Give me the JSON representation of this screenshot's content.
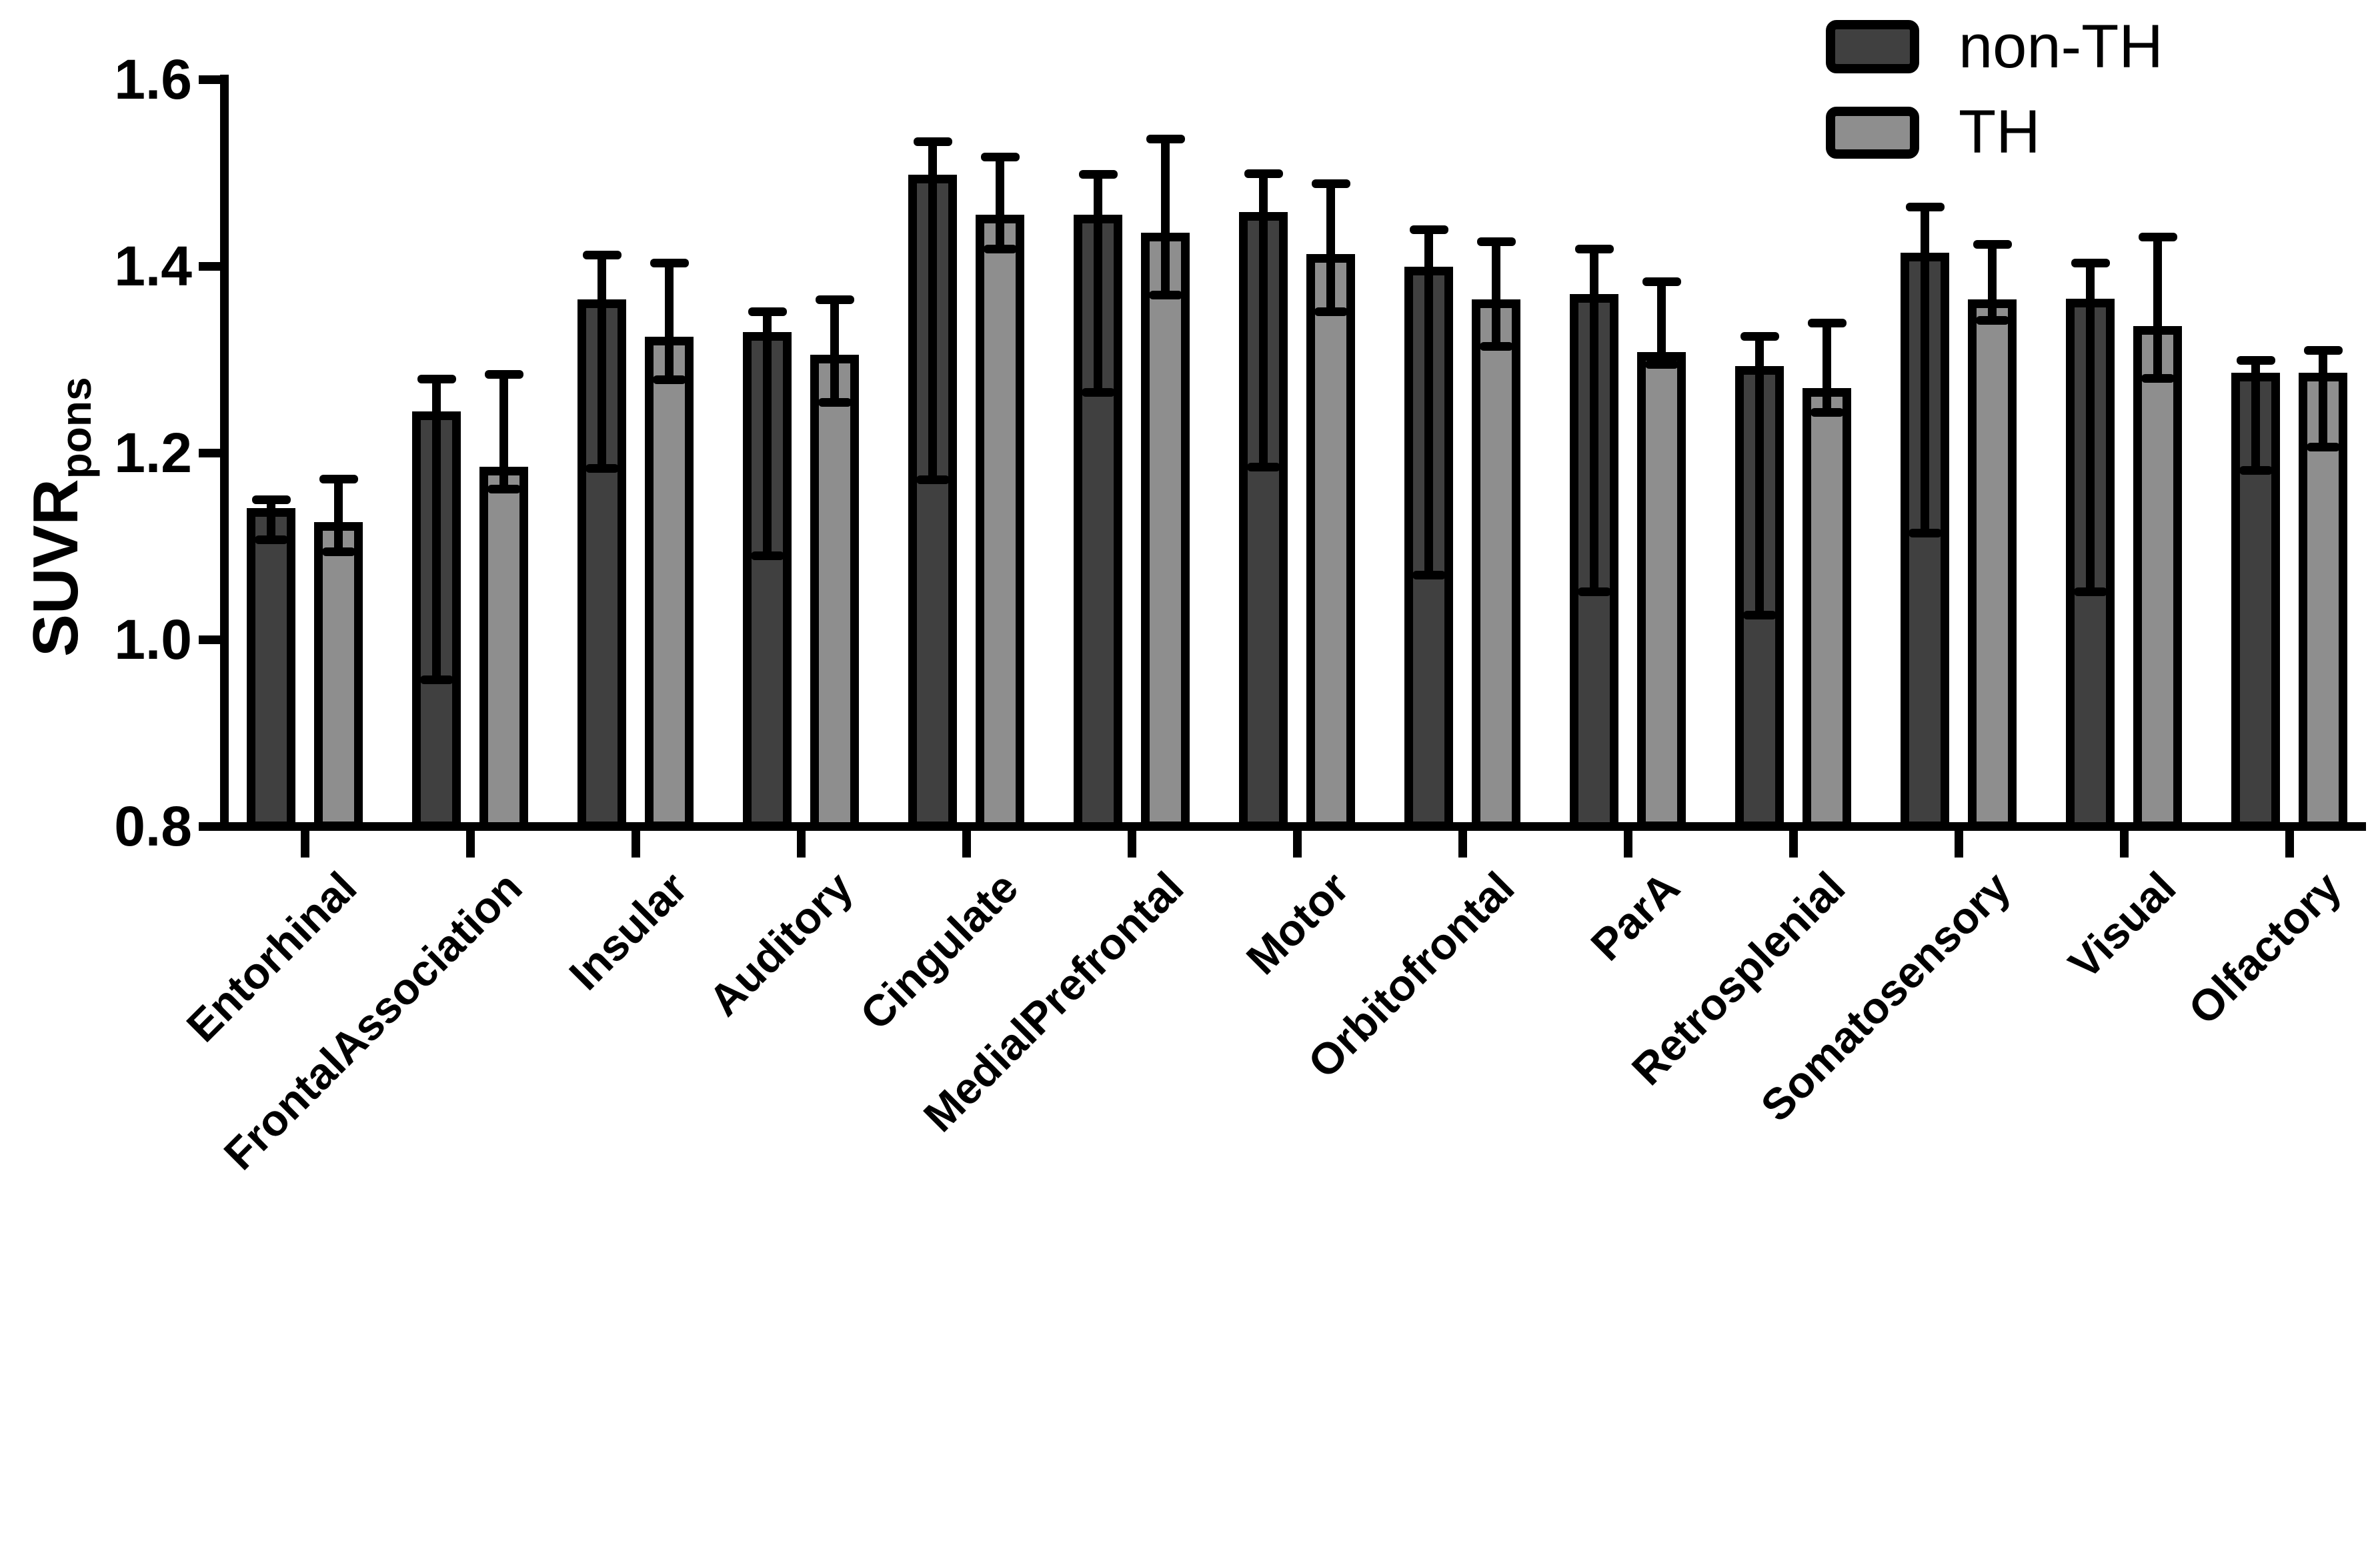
{
  "figure": {
    "background": "#ffffff"
  },
  "chart_data": {
    "type": "bar",
    "title": "",
    "ylabel_main": "SUVR",
    "ylabel_sub": "pons",
    "xlabel": "",
    "ylim": [
      0.8,
      1.6
    ],
    "ytick_labels": [
      "0.8",
      "1.0",
      "1.2",
      "1.4",
      "1.6"
    ],
    "grid": false,
    "legend_position": "top-right",
    "bar_outline_color": "#000000",
    "error_bar_color": "#000000",
    "categories": [
      "Entorhinal",
      "FrontalAssociation",
      "Insular",
      "Auditory",
      "Cingulate",
      "MedialPrefrontal",
      "Motor",
      "Orbitofrontal",
      "ParA",
      "Retrosplenial",
      "Somatosensory",
      "Visual",
      "Olfactory"
    ],
    "series": [
      {
        "name": "non-TH",
        "color": "#404040",
        "values": [
          1.141,
          1.244,
          1.364,
          1.329,
          1.498,
          1.455,
          1.458,
          1.399,
          1.37,
          1.293,
          1.414,
          1.365,
          1.286
        ],
        "error_upper": [
          1.15,
          1.279,
          1.412,
          1.351,
          1.533,
          1.498,
          1.499,
          1.439,
          1.418,
          1.325,
          1.463,
          1.403,
          1.299
        ],
        "error_lower": [
          1.107,
          0.957,
          1.183,
          1.09,
          1.171,
          1.265,
          1.185,
          1.069,
          1.051,
          1.026,
          1.114,
          1.051,
          1.181
        ]
      },
      {
        "name": "TH",
        "color": "#8E8E8E",
        "values": [
          1.126,
          1.185,
          1.324,
          1.305,
          1.455,
          1.436,
          1.413,
          1.364,
          1.308,
          1.269,
          1.364,
          1.336,
          1.286
        ],
        "error_upper": [
          1.172,
          1.284,
          1.403,
          1.364,
          1.517,
          1.536,
          1.488,
          1.426,
          1.383,
          1.339,
          1.423,
          1.431,
          1.31
        ],
        "error_lower": [
          1.094,
          1.161,
          1.278,
          1.254,
          1.418,
          1.369,
          1.351,
          1.314,
          1.295,
          1.243,
          1.342,
          1.28,
          1.206
        ]
      }
    ]
  }
}
